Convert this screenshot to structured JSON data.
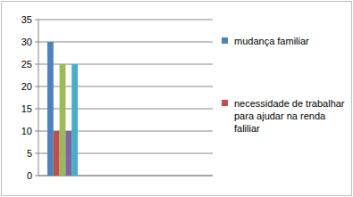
{
  "chart_data": {
    "type": "bar",
    "categories": [
      null
    ],
    "series": [
      {
        "name": "mudança familiar",
        "color": "#4f81bd",
        "values": [
          30
        ]
      },
      {
        "name": "necessidade de trabalhar para ajudar na renda faliliar",
        "color": "#c0504d",
        "values": [
          10
        ]
      },
      {
        "name": null,
        "color": "#9bbb59",
        "values": [
          25
        ]
      },
      {
        "name": null,
        "color": "#8064a2",
        "values": [
          10
        ]
      },
      {
        "name": null,
        "color": "#4bacc6",
        "values": [
          25
        ]
      }
    ],
    "ylim": [
      0,
      35
    ],
    "yticks": [
      0,
      5,
      10,
      15,
      20,
      25,
      30,
      35
    ],
    "grid": true,
    "legend": "right"
  }
}
